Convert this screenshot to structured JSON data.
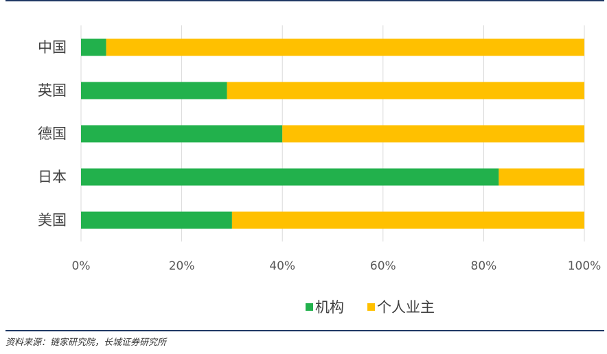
{
  "chart_data": {
    "type": "bar",
    "orientation": "horizontal",
    "stacked": "percent",
    "categories": [
      "中国",
      "英国",
      "德国",
      "日本",
      "美国"
    ],
    "series": [
      {
        "name": "机构",
        "values": [
          5,
          29,
          40,
          83,
          30
        ],
        "color": "#22B14C"
      },
      {
        "name": "个人业主",
        "values": [
          95,
          71,
          60,
          17,
          70
        ],
        "color": "#FFC000"
      }
    ],
    "xlim": [
      0,
      100
    ],
    "xticks": [
      "0%",
      "20%",
      "40%",
      "60%",
      "80%",
      "100%"
    ],
    "grid": true,
    "legend": "bottom"
  },
  "source_note": "资料来源：链家研究院，长城证券研究所"
}
